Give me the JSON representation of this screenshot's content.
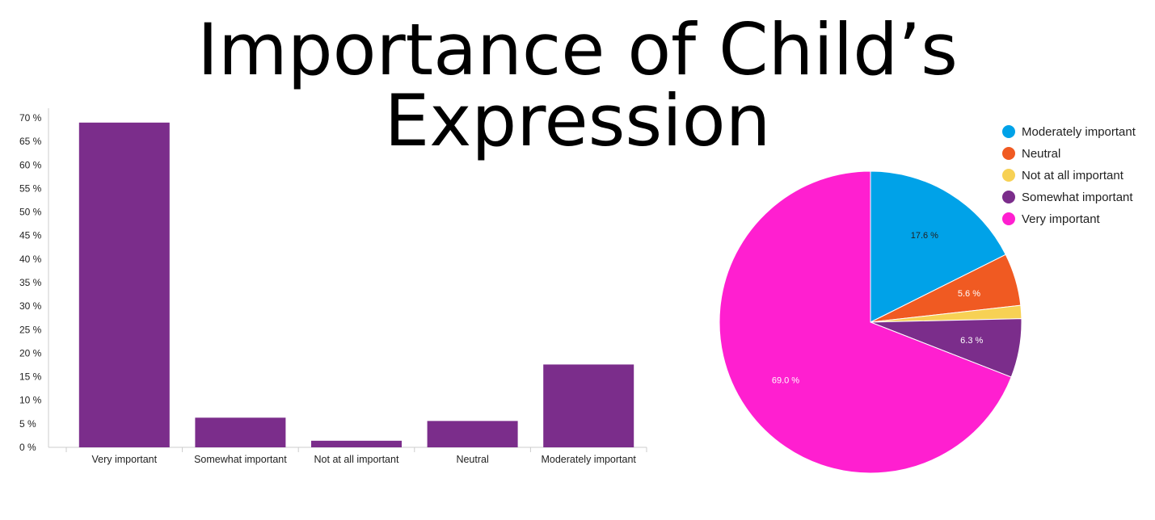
{
  "title": "Importance of Child’s Expression",
  "colors": {
    "bar": "#7b2d8b",
    "axis": "#cccccc"
  },
  "chart_data": [
    {
      "type": "bar",
      "categories": [
        "Very important",
        "Somewhat important",
        "Not at all important",
        "Neutral",
        "Moderately important"
      ],
      "values": [
        69.0,
        6.3,
        1.4,
        5.6,
        17.6
      ],
      "yticks": [
        "70 %",
        "65 %",
        "60 %",
        "55 %",
        "50 %",
        "45 %",
        "40 %",
        "35 %",
        "30 %",
        "25 %",
        "20 %",
        "15 %",
        "10 %",
        "5 %",
        "0 %"
      ],
      "ylim": [
        0,
        70
      ],
      "grid": false
    },
    {
      "type": "pie",
      "legend_position": "top-right",
      "slices": [
        {
          "name": "Moderately important",
          "value": 17.6,
          "label": "17.6 %",
          "color": "#00a2e8"
        },
        {
          "name": "Neutral",
          "value": 5.6,
          "label": "5.6 %",
          "color": "#f05a22"
        },
        {
          "name": "Not at all important",
          "value": 1.4,
          "label": "",
          "color": "#f7d154"
        },
        {
          "name": "Somewhat important",
          "value": 6.3,
          "label": "6.3 %",
          "color": "#7b2d8b"
        },
        {
          "name": "Very important",
          "value": 69.0,
          "label": "69.0 %",
          "color": "#ff1fd0"
        }
      ]
    }
  ]
}
